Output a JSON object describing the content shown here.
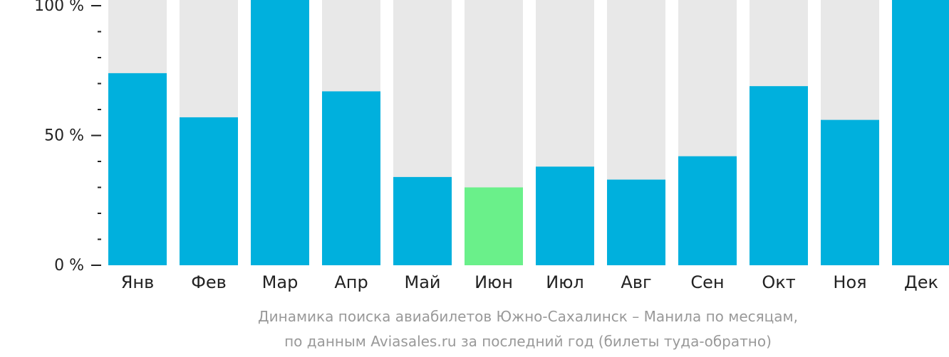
{
  "chart_data": {
    "type": "bar",
    "categories": [
      "Янв",
      "Фев",
      "Мар",
      "Апр",
      "Май",
      "Июн",
      "Июл",
      "Авг",
      "Сен",
      "Окт",
      "Ноя",
      "Дек"
    ],
    "values": [
      74,
      57,
      100,
      67,
      34,
      30,
      38,
      33,
      42,
      69,
      56,
      100
    ],
    "highlight_index": 5,
    "ylim": [
      0,
      100
    ],
    "yticks": [
      {
        "value": 0,
        "label": "0 %"
      },
      {
        "value": 50,
        "label": "50 %"
      },
      {
        "value": 100,
        "label": "100 %"
      }
    ],
    "minor_ticks": [
      10,
      20,
      30,
      40,
      60,
      70,
      80,
      90
    ],
    "colors": {
      "bar": "#00b0dd",
      "highlight": "#6af08a",
      "track": "#e8e8e8",
      "axis": "#222222"
    },
    "caption_line1": "Динамика поиска авиабилетов Южно-Сахалинск – Манила по месяцам,",
    "caption_line2": "по данным Aviasales.ru за последний год (билеты туда-обратно)"
  }
}
